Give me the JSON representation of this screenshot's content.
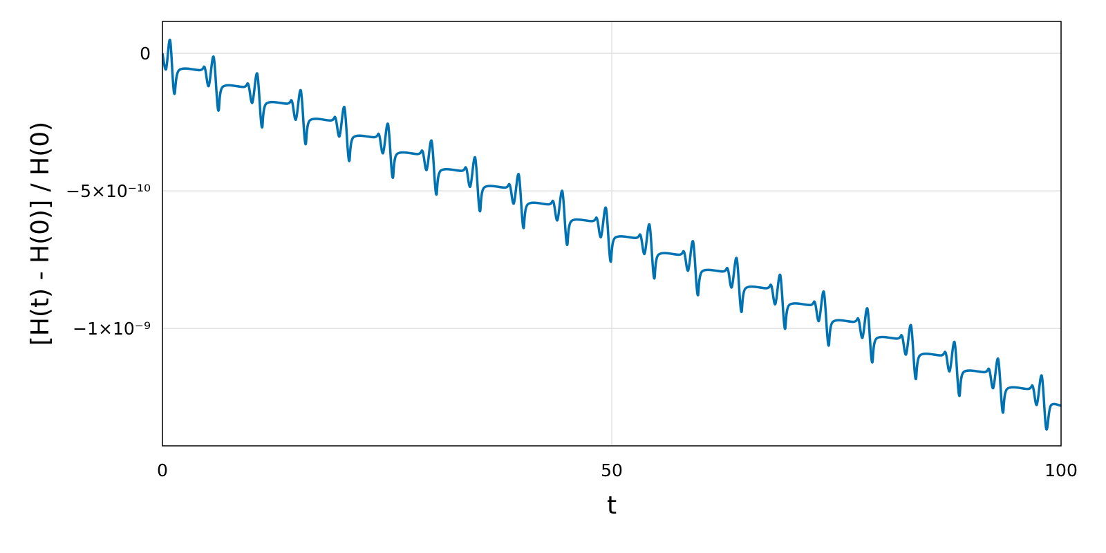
{
  "chart_data": {
    "type": "line",
    "xlabel": "t",
    "ylabel": "[H(t) - H(0)] / H(0)",
    "xlim": [
      0,
      100
    ],
    "ylim": [
      -1.427e-09,
      1.16e-10
    ],
    "xticks": [
      0,
      50,
      100
    ],
    "yticks": [
      0,
      {
        "value": -5e-10,
        "label": "−5×10⁻¹⁰"
      },
      {
        "value": -1e-09,
        "label": "−1×10⁻⁹"
      }
    ],
    "grid": true,
    "series": [
      {
        "color": "#0072b2",
        "x": [
          0,
          0.4,
          0.85,
          1.3,
          1.85,
          4.2,
          4.7,
          5.15,
          5.7,
          6.2,
          6.7,
          9.05,
          9.55,
          10.0,
          10.55,
          11.05,
          11.55,
          13.9,
          14.4,
          14.85,
          15.4,
          15.9,
          16.4,
          18.75,
          19.25,
          19.7,
          20.25,
          20.75,
          21.25,
          23.6,
          24.1,
          24.55,
          25.1,
          25.6,
          26.1,
          28.45,
          28.95,
          29.4,
          29.95,
          30.45,
          30.95,
          33.3,
          33.8,
          34.25,
          34.8,
          35.3,
          35.8,
          38.15,
          38.65,
          39.1,
          39.65,
          40.15,
          40.65,
          43.0,
          43.5,
          43.95,
          44.5,
          45.0,
          45.5,
          47.85,
          48.35,
          48.8,
          49.35,
          49.85,
          50.35,
          52.7,
          53.2,
          53.65,
          54.2,
          54.7,
          55.2,
          57.55,
          58.05,
          58.5,
          59.05,
          59.55,
          60.05,
          62.4,
          62.9,
          63.35,
          63.9,
          64.4,
          64.9,
          67.25,
          67.75,
          68.2,
          68.75,
          69.25,
          69.75,
          72.1,
          72.6,
          73.05,
          73.6,
          74.1,
          74.6,
          76.95,
          77.45,
          77.9,
          78.45,
          78.95,
          79.45,
          81.8,
          82.3,
          82.75,
          83.3,
          83.8,
          84.3,
          86.65,
          87.15,
          87.6,
          88.15,
          88.65,
          89.15,
          91.5,
          92.0,
          92.45,
          93.0,
          93.5,
          94.0,
          96.35,
          96.85,
          97.3,
          97.85,
          98.35,
          98.85,
          100
        ],
        "values": [
          0,
          -5.8e-11,
          4.8e-11,
          -1.45e-10,
          -6.1e-11,
          -6.1e-11,
          -5.1e-11,
          -1.19e-10,
          -1.3e-11,
          -2.06e-10,
          -1.22e-10,
          -1.22e-10,
          -1.12e-10,
          -1.8e-10,
          -7.4e-11,
          -2.67e-10,
          -1.83e-10,
          -1.83e-10,
          -1.73e-10,
          -2.41e-10,
          -1.35e-10,
          -3.28e-10,
          -2.44e-10,
          -2.44e-10,
          -2.34e-10,
          -3.02e-10,
          -1.96e-10,
          -3.89e-10,
          -3.05e-10,
          -3.05e-10,
          -2.95e-10,
          -3.63e-10,
          -2.57e-10,
          -4.5e-10,
          -3.66e-10,
          -3.66e-10,
          -3.56e-10,
          -4.24e-10,
          -3.18e-10,
          -5.11e-10,
          -4.27e-10,
          -4.27e-10,
          -4.17e-10,
          -4.85e-10,
          -3.79e-10,
          -5.72e-10,
          -4.88e-10,
          -4.88e-10,
          -4.78e-10,
          -5.46e-10,
          -4.4e-10,
          -6.33e-10,
          -5.49e-10,
          -5.49e-10,
          -5.39e-10,
          -6.07e-10,
          -5.01e-10,
          -6.94e-10,
          -6.1e-10,
          -6.1e-10,
          -6e-10,
          -6.68e-10,
          -5.62e-10,
          -7.55e-10,
          -6.71e-10,
          -6.71e-10,
          -6.61e-10,
          -7.29e-10,
          -6.23e-10,
          -8.16e-10,
          -7.32e-10,
          -7.32e-10,
          -7.22e-10,
          -7.9e-10,
          -6.84e-10,
          -8.77e-10,
          -7.93e-10,
          -7.93e-10,
          -7.83e-10,
          -8.51e-10,
          -7.45e-10,
          -9.38e-10,
          -8.54e-10,
          -8.54e-10,
          -8.44e-10,
          -9.12e-10,
          -8.06e-10,
          -9.99e-10,
          -9.15e-10,
          -9.15e-10,
          -9.05e-10,
          -9.73e-10,
          -8.67e-10,
          -1.06e-09,
          -9.76e-10,
          -9.76e-10,
          -9.66e-10,
          -1.034e-09,
          -9.28e-10,
          -1.121e-09,
          -1.037e-09,
          -1.037e-09,
          -1.027e-09,
          -1.095e-09,
          -9.89e-10,
          -1.182e-09,
          -1.098e-09,
          -1.098e-09,
          -1.088e-09,
          -1.156e-09,
          -1.05e-09,
          -1.243e-09,
          -1.159e-09,
          -1.159e-09,
          -1.149e-09,
          -1.217e-09,
          -1.111e-09,
          -1.304e-09,
          -1.22e-09,
          -1.22e-09,
          -1.21e-09,
          -1.278e-09,
          -1.172e-09,
          -1.365e-09,
          -1.281e-09,
          -1.281e-09
        ]
      }
    ]
  }
}
